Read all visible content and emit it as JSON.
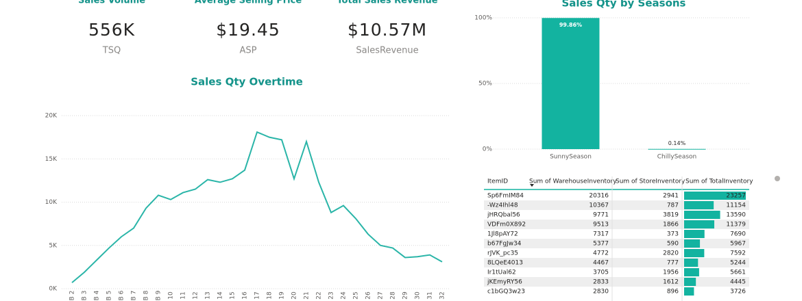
{
  "kpis": [
    {
      "title": "Sales Volume",
      "value": "556K",
      "label": "TSQ"
    },
    {
      "title": "Average Selling Price",
      "value": "$19.45",
      "label": "ASP"
    },
    {
      "title": "Total Sales Revenue",
      "value": "$10.57M",
      "label": "SalesRevenue"
    }
  ],
  "chart_data": [
    {
      "type": "line",
      "title": "Sales Qty Overtime",
      "color": "#2ab5a8",
      "grid": true,
      "categories": [
        "B 2",
        "B 3",
        "B 4",
        "B 5",
        "B 6",
        "B 7",
        "B 8",
        "B 9",
        "10",
        "11",
        "12",
        "13",
        "14",
        "15",
        "16",
        "17",
        "18",
        "19",
        "20",
        "21",
        "22",
        "23",
        "24",
        "25",
        "26",
        "27",
        "28",
        "29",
        "30",
        "31",
        "32"
      ],
      "values": [
        700,
        1900,
        3300,
        4700,
        6000,
        7000,
        9300,
        10800,
        10300,
        11100,
        11500,
        12600,
        12300,
        12700,
        13700,
        18100,
        17500,
        17200,
        12700,
        17000,
        12300,
        8800,
        9600,
        8100,
        6300,
        5000,
        4700,
        3600,
        3700,
        3900,
        3100
      ],
      "ylim": [
        0,
        20000
      ],
      "yticks": [
        {
          "value": 0,
          "label": "0K"
        },
        {
          "value": 5000,
          "label": "5K"
        },
        {
          "value": 10000,
          "label": "10K"
        },
        {
          "value": 15000,
          "label": "15K"
        },
        {
          "value": 20000,
          "label": "20K"
        }
      ]
    },
    {
      "type": "bar",
      "title": "Sales Qty by Seasons",
      "color": "#13b3a0",
      "grid": true,
      "categories": [
        "SunnySeason",
        "ChillySeason"
      ],
      "values": [
        99.86,
        0.14
      ],
      "value_labels": [
        "99.86%",
        "0.14%"
      ],
      "ylim": [
        0,
        100
      ],
      "yticks": [
        {
          "value": 0,
          "label": "0%"
        },
        {
          "value": 50,
          "label": "50%"
        },
        {
          "value": 100,
          "label": "100%"
        }
      ]
    }
  ],
  "table": {
    "columns": [
      "ItemID",
      "Sum of WarehouseInventory",
      "Sum of StoreInventory",
      "Sum of TotalInventory"
    ],
    "bar_color": "#13b3a0",
    "rows": [
      [
        "Sp6FmIM84",
        20316,
        2941,
        23257
      ],
      [
        "-Wz4Ihl48",
        10367,
        787,
        11154
      ],
      [
        "jHRQbal56",
        9771,
        3819,
        13590
      ],
      [
        "VDFm0X892",
        9513,
        1866,
        11379
      ],
      [
        "1Jl8pAY72",
        7317,
        373,
        7690
      ],
      [
        "b67FgJw34",
        5377,
        590,
        5967
      ],
      [
        "rJVK_pc35",
        4772,
        2820,
        7592
      ],
      [
        "8LQeE4013",
        4467,
        777,
        5244
      ],
      [
        "Ir1tUal62",
        3705,
        1956,
        5661
      ],
      [
        "jKEmyRY56",
        2833,
        1612,
        4445
      ],
      [
        "c1bGQ3w23",
        2830,
        896,
        3726
      ]
    ]
  }
}
